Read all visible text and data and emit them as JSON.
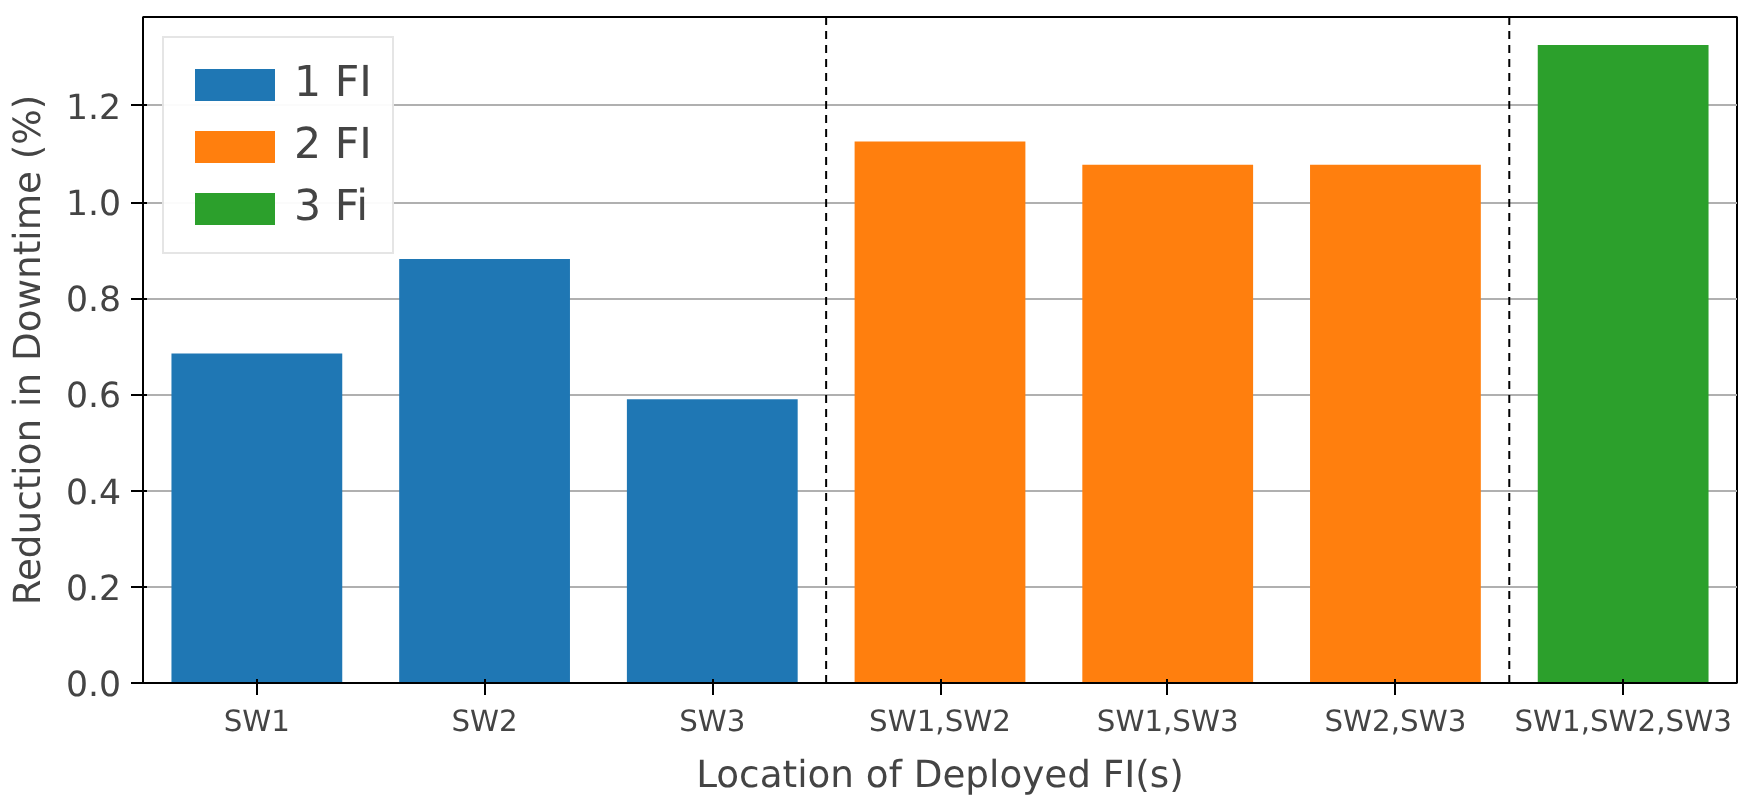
{
  "chart_data": {
    "type": "bar",
    "xlabel": "Location of Deployed FI(s)",
    "ylabel": "Reduction in Downtime (%)",
    "categories": [
      "SW1",
      "SW2",
      "SW3",
      "SW1,SW2",
      "SW1,SW3",
      "SW2,SW3",
      "SW1,SW2,SW3"
    ],
    "series": [
      {
        "name": "1 FI",
        "color": "#1f77b4",
        "values": [
          0.685,
          0.882,
          0.59,
          null,
          null,
          null,
          null
        ]
      },
      {
        "name": "2 FI",
        "color": "#ff7f0e",
        "values": [
          null,
          null,
          null,
          1.126,
          1.078,
          1.078,
          null
        ]
      },
      {
        "name": "3 Fi",
        "color": "#2ca02c",
        "values": [
          null,
          null,
          null,
          null,
          null,
          null,
          1.327
        ]
      }
    ],
    "ylim": [
      0,
      1.385
    ],
    "yticks": [
      {
        "value": 0,
        "label": "0.0"
      },
      {
        "value": 0.2,
        "label": "0.2"
      },
      {
        "value": 0.4,
        "label": "0.4"
      },
      {
        "value": 0.6,
        "label": "0.6"
      },
      {
        "value": 0.8,
        "label": "0.8"
      },
      {
        "value": 1.0,
        "label": "1.0"
      },
      {
        "value": 1.2,
        "label": "1.2"
      }
    ],
    "grid": "y",
    "legend": "top left"
  }
}
